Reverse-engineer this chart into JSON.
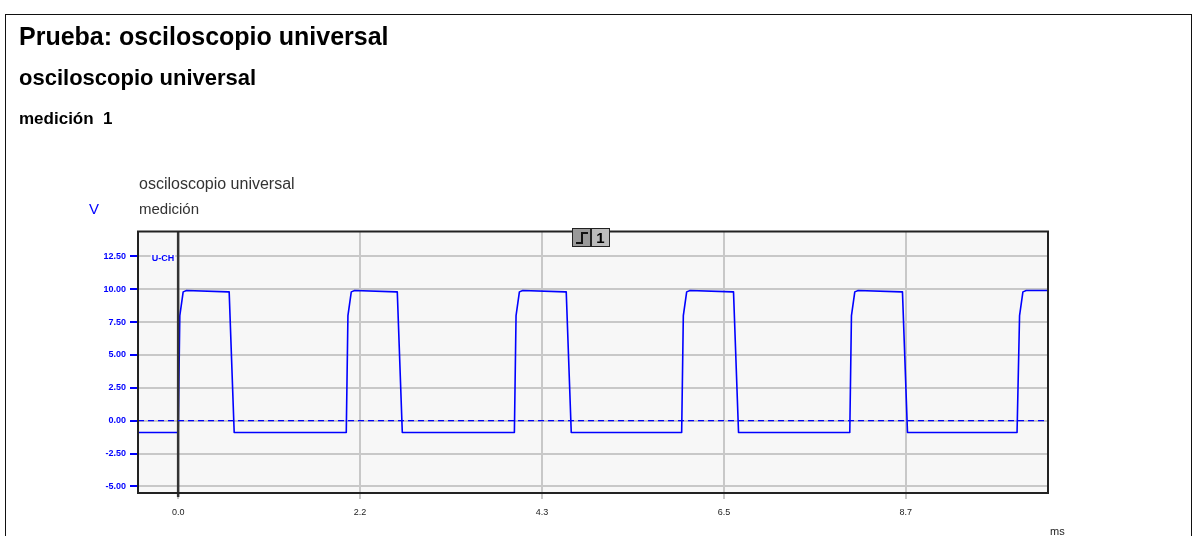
{
  "chart_data": {
    "type": "line",
    "title": "Prueba: osciloscopio universal",
    "subtitle": "osciloscopio universal",
    "ylabel": "V",
    "xlabel": "ms",
    "annotations": [
      "medición  1",
      "osciloscopio universal",
      "medición",
      {
        "text": "U-CH",
        "x": 0,
        "y": 12.5
      },
      "1"
    ],
    "series": [
      {
        "color": "#0000ff",
        "x": [
          -0.48,
          -0.02,
          0,
          0.02,
          0.06,
          0.1,
          0.6,
          0.61,
          0.67,
          2.0,
          2.01,
          2.03,
          2.07,
          2.11,
          2.61,
          2.62,
          2.68,
          4.01,
          4.02,
          4.04,
          4.08,
          4.12,
          4.63,
          4.64,
          4.7,
          6.01,
          6.02,
          6.04,
          6.08,
          6.12,
          6.63,
          6.64,
          6.7,
          8.02,
          8.03,
          8.05,
          8.09,
          8.13,
          8.65,
          8.66,
          8.72,
          10.03,
          10.04,
          10.06,
          10.1,
          10.14,
          10.4
        ],
        "values": [
          -0.9,
          -0.9,
          -0.9,
          8,
          9.8,
          9.9,
          9.8,
          9.8,
          -0.9,
          -0.9,
          -0.9,
          8,
          9.8,
          9.9,
          9.8,
          9.8,
          -0.9,
          -0.9,
          -0.9,
          8,
          9.8,
          9.9,
          9.8,
          9.8,
          -0.9,
          -0.9,
          -0.9,
          8,
          9.8,
          9.9,
          9.8,
          9.8,
          -0.9,
          -0.9,
          -0.9,
          8,
          9.8,
          9.9,
          9.8,
          9.8,
          -0.9,
          -0.9,
          -0.9,
          8,
          9.8,
          9.9,
          9.9
        ]
      }
    ],
    "xlim": [
      -0.48,
      10.4
    ],
    "xticks": [
      {
        "value": 0,
        "label": "0.0"
      },
      {
        "value": 2.175,
        "label": "2.2"
      },
      {
        "value": 4.35,
        "label": "4.3"
      },
      {
        "value": 6.525,
        "label": "6.5"
      },
      8.7
    ],
    "ylim": [
      -5.5,
      14.4
    ],
    "yticks": [
      {
        "value": -5,
        "label": "-5.00"
      },
      {
        "value": -2.5,
        "label": "-2.50"
      },
      {
        "value": 0,
        "label": "0.00"
      },
      {
        "value": 2.5,
        "label": "2.50"
      },
      {
        "value": 5,
        "label": "5.00"
      },
      {
        "value": 7.5,
        "label": "7.50"
      },
      {
        "value": 10,
        "label": "10.00"
      },
      {
        "value": 12.5,
        "label": "12.50"
      }
    ],
    "ref_lines": [
      {
        "axis": "x",
        "value": 0,
        "color": "#333333",
        "line_style": "solid"
      },
      {
        "axis": "y",
        "value": 0,
        "color": "#0000ff",
        "line_style": "dashed"
      }
    ],
    "grid": true,
    "legend": false,
    "marker": "none",
    "line_style": "solid"
  }
}
